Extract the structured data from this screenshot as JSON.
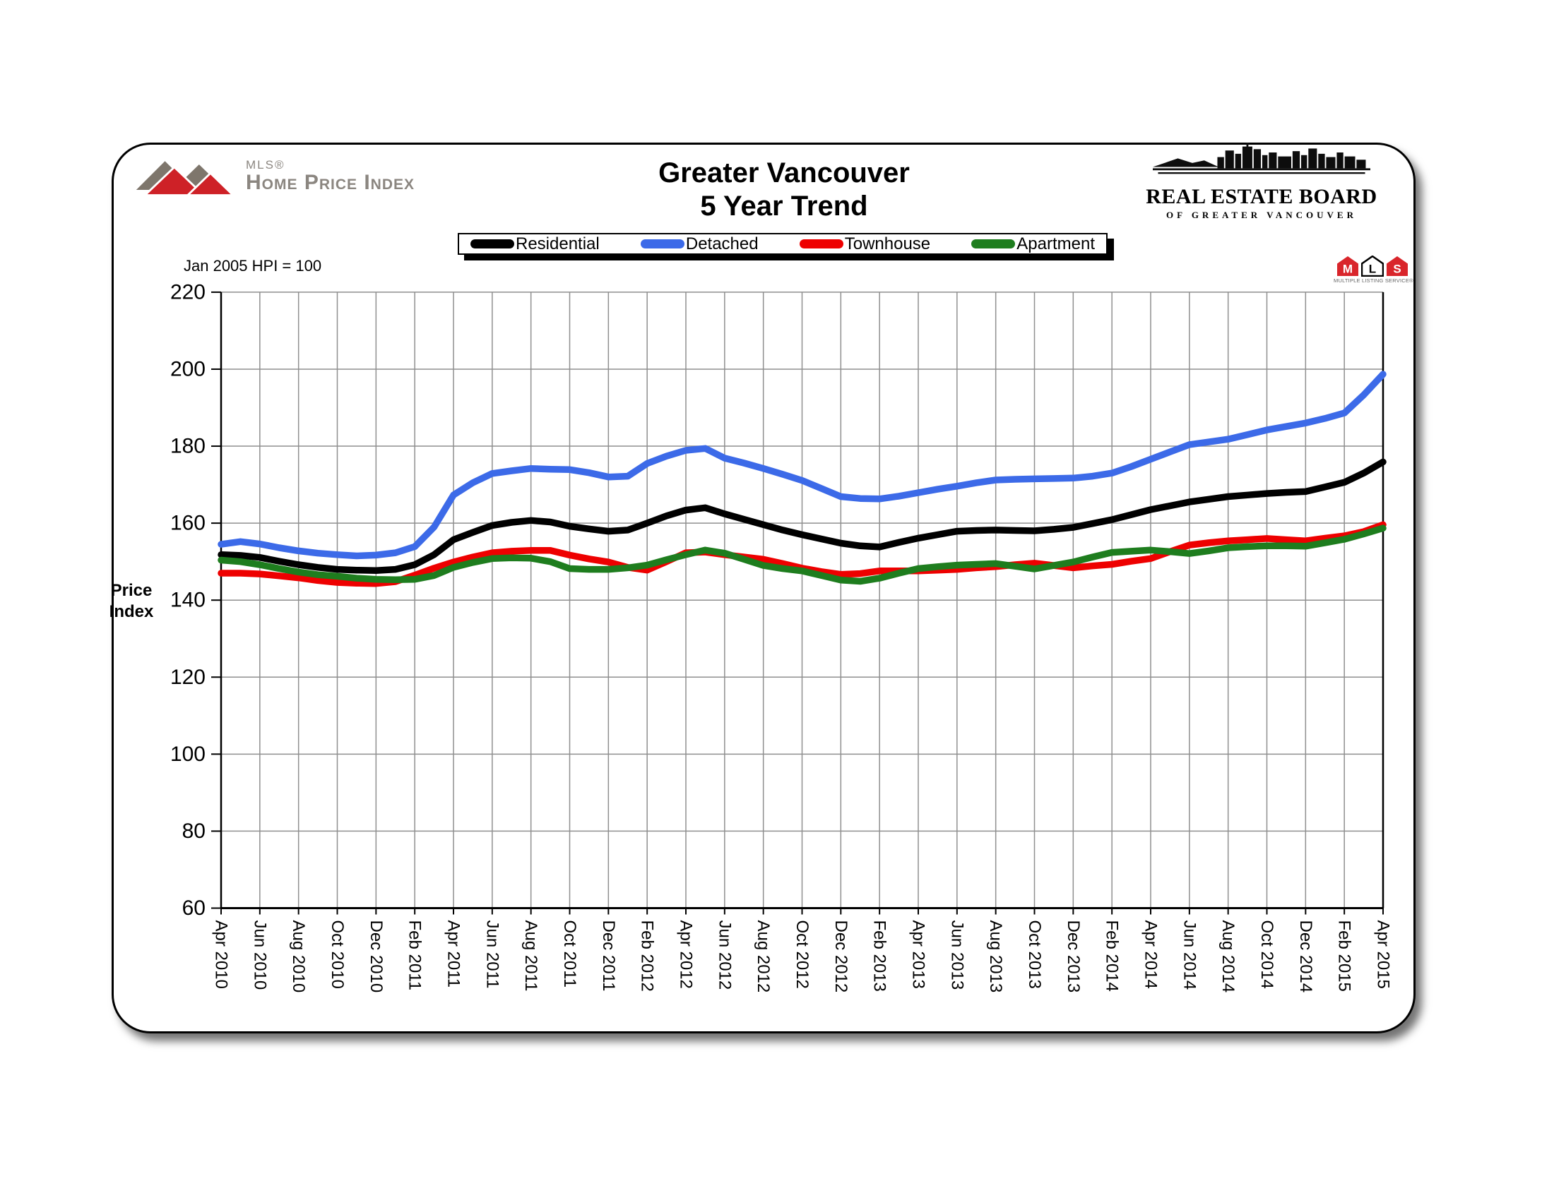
{
  "header": {
    "mls_logo": {
      "mls": "MLS®",
      "name": "Home Price Index"
    },
    "title_line1": "Greater Vancouver",
    "title_line2": "5 Year Trend",
    "rebgv_logo": {
      "line1": "REAL ESTATE BOARD",
      "line2": "OF GREATER VANCOUVER"
    }
  },
  "annotations": {
    "baseline_note": "Jan 2005 HPI = 100",
    "y_axis_label_line1": "Price",
    "y_axis_label_line2": "Index"
  },
  "legend": {
    "items": [
      {
        "label": "Residential",
        "color": "#000000"
      },
      {
        "label": "Detached",
        "color": "#3C6AE8"
      },
      {
        "label": "Townhouse",
        "color": "#EE0000"
      },
      {
        "label": "Apartment",
        "color": "#1E7D1E"
      }
    ]
  },
  "mls_badge": {
    "letters": [
      "M",
      "L",
      "S"
    ],
    "caption": "MULTIPLE LISTING SERVICE®"
  },
  "chart_data": {
    "type": "line",
    "title": "Greater Vancouver",
    "subtitle": "5 Year Trend",
    "ylabel": "Price Index",
    "note": "Jan 2005 HPI = 100",
    "grid": true,
    "legend_position": "top",
    "ylim": [
      60,
      220
    ],
    "ytick_step": 20,
    "x_tick_every": 2,
    "x_tick_labels": [
      "Apr 2010",
      "Jun 2010",
      "Aug 2010",
      "Oct 2010",
      "Dec 2010",
      "Feb 2011",
      "Apr 2011",
      "Jun 2011",
      "Aug 2011",
      "Oct 2011",
      "Dec 2011",
      "Feb 2012",
      "Apr 2012",
      "Jun 2012",
      "Aug 2012",
      "Oct 2012",
      "Dec 2012",
      "Feb 2013",
      "Apr 2013",
      "Jun 2013",
      "Aug 2013",
      "Oct 2013",
      "Dec 2013",
      "Feb 2014",
      "Apr 2014",
      "Jun 2014",
      "Aug 2014",
      "Oct 2014",
      "Dec 2014",
      "Feb 2015",
      "Apr 2015"
    ],
    "x": [
      "Apr 2010",
      "May 2010",
      "Jun 2010",
      "Jul 2010",
      "Aug 2010",
      "Sep 2010",
      "Oct 2010",
      "Nov 2010",
      "Dec 2010",
      "Jan 2011",
      "Feb 2011",
      "Mar 2011",
      "Apr 2011",
      "May 2011",
      "Jun 2011",
      "Jul 2011",
      "Aug 2011",
      "Sep 2011",
      "Oct 2011",
      "Nov 2011",
      "Dec 2011",
      "Jan 2012",
      "Feb 2012",
      "Mar 2012",
      "Apr 2012",
      "May 2012",
      "Jun 2012",
      "Jul 2012",
      "Aug 2012",
      "Sep 2012",
      "Oct 2012",
      "Nov 2012",
      "Dec 2012",
      "Jan 2013",
      "Feb 2013",
      "Mar 2013",
      "Apr 2013",
      "May 2013",
      "Jun 2013",
      "Jul 2013",
      "Aug 2013",
      "Sep 2013",
      "Oct 2013",
      "Nov 2013",
      "Dec 2013",
      "Jan 2014",
      "Feb 2014",
      "Mar 2014",
      "Apr 2014",
      "May 2014",
      "Jun 2014",
      "Jul 2014",
      "Aug 2014",
      "Sep 2014",
      "Oct 2014",
      "Nov 2014",
      "Dec 2014",
      "Jan 2015",
      "Feb 2015",
      "Mar 2015",
      "Apr 2015"
    ],
    "series": [
      {
        "name": "Residential",
        "color": "#000000",
        "values": [
          151.8,
          151.6,
          151.1,
          150.1,
          149.2,
          148.5,
          148.0,
          147.8,
          147.7,
          148.0,
          149.2,
          151.8,
          155.7,
          157.6,
          159.4,
          160.2,
          160.7,
          160.3,
          159.2,
          158.5,
          157.9,
          158.2,
          160.0,
          161.9,
          163.4,
          164.0,
          162.4,
          161.0,
          159.6,
          158.2,
          157.0,
          155.9,
          154.8,
          154.1,
          153.8,
          155.0,
          156.1,
          157.0,
          157.9,
          158.1,
          158.2,
          158.1,
          158.0,
          158.4,
          158.9,
          159.9,
          160.9,
          162.2,
          163.5,
          164.5,
          165.5,
          166.2,
          166.9,
          167.3,
          167.7,
          168.0,
          168.2,
          169.4,
          170.6,
          173.0,
          175.9
        ]
      },
      {
        "name": "Detached",
        "color": "#3C6AE8",
        "values": [
          154.5,
          155.2,
          154.6,
          153.6,
          152.8,
          152.2,
          151.8,
          151.5,
          151.7,
          152.3,
          153.9,
          159.0,
          167.3,
          170.5,
          172.9,
          173.6,
          174.2,
          174.0,
          173.9,
          173.1,
          172.0,
          172.2,
          175.5,
          177.4,
          178.9,
          179.4,
          176.9,
          175.6,
          174.2,
          172.7,
          171.1,
          169.0,
          166.9,
          166.4,
          166.3,
          167.0,
          167.9,
          168.8,
          169.6,
          170.5,
          171.2,
          171.4,
          171.5,
          171.6,
          171.7,
          172.2,
          173.0,
          174.7,
          176.6,
          178.5,
          180.4,
          181.1,
          181.8,
          183.0,
          184.2,
          185.1,
          186.0,
          187.2,
          188.6,
          193.3,
          198.7
        ]
      },
      {
        "name": "Townhouse",
        "color": "#EE0000",
        "values": [
          147.0,
          147.0,
          146.8,
          146.3,
          145.8,
          145.1,
          144.6,
          144.4,
          144.3,
          144.8,
          146.5,
          148.3,
          149.9,
          151.2,
          152.3,
          152.7,
          152.9,
          152.9,
          151.7,
          150.7,
          149.9,
          148.5,
          147.8,
          150.0,
          152.3,
          152.5,
          151.8,
          151.2,
          150.6,
          149.5,
          148.3,
          147.4,
          146.7,
          146.9,
          147.6,
          147.6,
          147.6,
          147.8,
          148.0,
          148.4,
          148.7,
          149.2,
          149.6,
          149.0,
          148.4,
          148.9,
          149.3,
          150.1,
          150.8,
          152.6,
          154.3,
          154.9,
          155.4,
          155.7,
          156.0,
          155.7,
          155.4,
          156.1,
          156.7,
          157.8,
          159.6
        ]
      },
      {
        "name": "Apartment",
        "color": "#1E7D1E",
        "values": [
          150.4,
          150.0,
          149.2,
          148.2,
          147.3,
          146.6,
          146.2,
          145.7,
          145.4,
          145.3,
          145.4,
          146.4,
          148.5,
          149.8,
          150.8,
          151.0,
          150.9,
          150.0,
          148.2,
          148.0,
          148.0,
          148.4,
          149.1,
          150.5,
          151.8,
          153.0,
          152.2,
          150.6,
          149.0,
          148.2,
          147.6,
          146.4,
          145.2,
          144.9,
          145.7,
          147.0,
          148.2,
          148.7,
          149.1,
          149.3,
          149.5,
          148.8,
          148.1,
          149.0,
          149.9,
          151.2,
          152.4,
          152.7,
          153.0,
          152.6,
          152.1,
          152.8,
          153.6,
          153.9,
          154.1,
          154.1,
          154.0,
          154.9,
          155.8,
          157.2,
          158.7
        ]
      }
    ]
  }
}
